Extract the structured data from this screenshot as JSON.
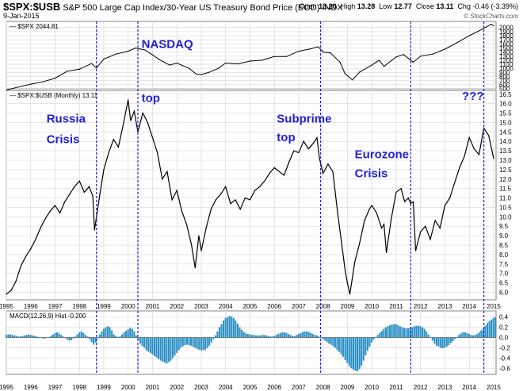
{
  "header": {
    "symbol": "$SPX:$USB",
    "description": "S&P 500 Large Cap Index/30-Year US Treasury Bond Price (EOD)",
    "exchange": "INDX",
    "date": "9-Jan-2015",
    "open_label": "Open",
    "open": "13.20",
    "high_label": "High",
    "high": "13.28",
    "low_label": "Low",
    "low": "12.77",
    "close_label": "Close",
    "close": "13.11",
    "chg_label": "Chg",
    "chg": "-0.46 (-3.39%)",
    "brand": "© StockCharts.com"
  },
  "colors": {
    "accent": "#1f1fd8",
    "macd_bar": "#2a8ec4",
    "line": "#000000",
    "grid": "#d8d8d8"
  },
  "chart_data": [
    {
      "type": "line",
      "panel": "top",
      "legend": "$SPX 2044.81",
      "y_ticks": [
        "2000",
        "1900",
        "1800",
        "1700",
        "1600",
        "1500",
        "1400",
        "1300",
        "1200",
        "1100",
        "1000",
        "900",
        "800",
        "700",
        "600",
        "500"
      ],
      "ylim": [
        500,
        2150
      ],
      "x": [
        1995.0,
        1995.5,
        1996.0,
        1996.5,
        1997.0,
        1997.5,
        1998.0,
        1998.5,
        1998.7,
        1999.0,
        1999.5,
        2000.0,
        2000.3,
        2000.7,
        2001.0,
        2001.3,
        2001.7,
        2002.0,
        2002.5,
        2002.8,
        2003.0,
        2003.3,
        2003.7,
        2004.0,
        2004.5,
        2005.0,
        2005.5,
        2006.0,
        2006.5,
        2007.0,
        2007.5,
        2007.8,
        2008.0,
        2008.3,
        2008.7,
        2008.9,
        2009.2,
        2009.5,
        2010.0,
        2010.3,
        2010.5,
        2011.0,
        2011.3,
        2011.7,
        2012.0,
        2012.5,
        2013.0,
        2013.5,
        2014.0,
        2014.5,
        2014.9,
        2015.0
      ],
      "values": [
        470,
        545,
        615,
        670,
        760,
        930,
        980,
        1120,
        1010,
        1230,
        1350,
        1420,
        1500,
        1450,
        1330,
        1210,
        1080,
        1130,
        1000,
        860,
        850,
        900,
        1000,
        1130,
        1110,
        1180,
        1200,
        1290,
        1290,
        1420,
        1480,
        1530,
        1400,
        1380,
        1150,
        870,
        720,
        910,
        1080,
        1200,
        1050,
        1280,
        1340,
        1150,
        1300,
        1350,
        1470,
        1630,
        1800,
        1950,
        2080,
        2044
      ]
    },
    {
      "type": "line",
      "panel": "middle",
      "legend": "$SPX:$USB (Monthly) 13.11",
      "y_ticks": [
        "16.5",
        "16.0",
        "15.5",
        "15.0",
        "14.5",
        "14.0",
        "13.5",
        "13.0",
        "12.5",
        "12.0",
        "11.5",
        "11.0",
        "10.5",
        "10.0",
        "9.5",
        "9.0",
        "8.5",
        "8.0",
        "7.5",
        "7.0",
        "6.5",
        "6.0"
      ],
      "ylim": [
        5.6,
        16.7
      ],
      "x": [
        1995.0,
        1995.2,
        1995.4,
        1995.6,
        1995.8,
        1996.0,
        1996.2,
        1996.4,
        1996.6,
        1996.8,
        1997.0,
        1997.2,
        1997.4,
        1997.6,
        1997.8,
        1998.0,
        1998.2,
        1998.4,
        1998.55,
        1998.62,
        1998.7,
        1998.85,
        1999.0,
        1999.2,
        1999.4,
        1999.6,
        1999.8,
        2000.0,
        2000.1,
        2000.25,
        2000.4,
        2000.6,
        2000.8,
        2001.0,
        2001.2,
        2001.4,
        2001.6,
        2001.8,
        2002.0,
        2002.2,
        2002.4,
        2002.6,
        2002.75,
        2002.9,
        2003.0,
        2003.2,
        2003.4,
        2003.6,
        2003.8,
        2004.0,
        2004.2,
        2004.4,
        2004.6,
        2004.8,
        2005.0,
        2005.2,
        2005.4,
        2005.6,
        2005.8,
        2006.0,
        2006.2,
        2006.4,
        2006.6,
        2006.8,
        2007.0,
        2007.2,
        2007.4,
        2007.6,
        2007.75,
        2007.85,
        2008.0,
        2008.2,
        2008.4,
        2008.6,
        2008.75,
        2008.9,
        2009.0,
        2009.1,
        2009.3,
        2009.5,
        2009.7,
        2009.9,
        2010.0,
        2010.2,
        2010.4,
        2010.5,
        2010.6,
        2010.8,
        2011.0,
        2011.2,
        2011.35,
        2011.5,
        2011.6,
        2011.7,
        2011.8,
        2012.0,
        2012.2,
        2012.4,
        2012.6,
        2012.8,
        2013.0,
        2013.2,
        2013.4,
        2013.6,
        2013.8,
        2014.0,
        2014.2,
        2014.4,
        2014.6,
        2014.8,
        2015.0
      ],
      "values": [
        5.9,
        6.1,
        6.6,
        7.4,
        7.9,
        8.3,
        8.8,
        9.4,
        9.9,
        10.3,
        10.6,
        10.2,
        10.8,
        11.2,
        11.6,
        11.9,
        11.3,
        11.6,
        11.1,
        9.3,
        10.0,
        11.3,
        12.5,
        13.4,
        14.1,
        13.7,
        14.9,
        16.2,
        15.1,
        15.6,
        14.5,
        15.5,
        15.0,
        14.2,
        13.4,
        12.0,
        12.4,
        10.9,
        11.4,
        10.3,
        9.6,
        8.5,
        7.3,
        9.0,
        8.2,
        9.4,
        10.4,
        10.9,
        11.2,
        11.6,
        10.7,
        10.9,
        10.4,
        11.0,
        10.9,
        11.4,
        11.6,
        11.9,
        12.3,
        12.6,
        12.4,
        12.2,
        12.9,
        13.5,
        13.4,
        14.0,
        13.6,
        13.9,
        14.2,
        13.1,
        12.3,
        12.8,
        12.4,
        10.2,
        8.7,
        7.2,
        6.5,
        5.9,
        7.6,
        8.6,
        9.8,
        10.4,
        10.6,
        10.2,
        9.4,
        9.6,
        8.1,
        9.9,
        11.3,
        11.5,
        10.8,
        11.0,
        10.7,
        10.8,
        8.2,
        9.2,
        9.5,
        8.8,
        9.8,
        9.4,
        10.6,
        11.0,
        11.8,
        12.6,
        13.2,
        14.2,
        13.6,
        13.3,
        14.7,
        14.3,
        13.1
      ]
    },
    {
      "type": "bar",
      "panel": "bottom",
      "legend": "MACD(12,26,9) Hist -0.200",
      "y_ticks": [
        "0.4",
        "0.2",
        "0.0",
        "-0.2",
        "-0.4",
        "-0.6"
      ],
      "ylim": [
        -0.72,
        0.52
      ],
      "x_start": 1995.0,
      "x_step": 0.0833,
      "values": [
        0.05,
        0.06,
        0.06,
        0.05,
        0.04,
        0.03,
        0.02,
        0.02,
        0.03,
        0.04,
        0.05,
        0.06,
        0.05,
        0.04,
        0.03,
        0.02,
        0.01,
        0.0,
        -0.02,
        -0.02,
        -0.01,
        0.01,
        0.03,
        0.06,
        0.09,
        0.1,
        0.08,
        0.05,
        0.02,
        -0.01,
        -0.04,
        -0.06,
        -0.05,
        -0.02,
        0.02,
        0.06,
        0.1,
        0.12,
        0.09,
        0.05,
        0.02,
        -0.03,
        -0.09,
        -0.14,
        -0.1,
        -0.02,
        0.06,
        0.12,
        0.17,
        0.2,
        0.22,
        0.2,
        0.14,
        0.06,
        0.03,
        0.01,
        0.02,
        0.06,
        0.1,
        0.13,
        0.16,
        0.19,
        0.17,
        0.12,
        0.04,
        -0.04,
        -0.12,
        -0.17,
        -0.2,
        -0.25,
        -0.28,
        -0.3,
        -0.33,
        -0.36,
        -0.39,
        -0.42,
        -0.45,
        -0.47,
        -0.49,
        -0.51,
        -0.48,
        -0.45,
        -0.4,
        -0.35,
        -0.3,
        -0.25,
        -0.2,
        -0.17,
        -0.15,
        -0.14,
        -0.15,
        -0.16,
        -0.18,
        -0.2,
        -0.22,
        -0.24,
        -0.25,
        -0.25,
        -0.24,
        -0.21,
        -0.16,
        -0.1,
        -0.03,
        0.04,
        0.12,
        0.2,
        0.26,
        0.33,
        0.38,
        0.4,
        0.42,
        0.41,
        0.38,
        0.33,
        0.27,
        0.2,
        0.15,
        0.11,
        0.08,
        0.07,
        0.06,
        0.05,
        0.05,
        0.04,
        0.04,
        0.04,
        0.05,
        0.05,
        0.04,
        0.03,
        0.02,
        0.02,
        0.03,
        0.05,
        0.07,
        0.09,
        0.1,
        0.1,
        0.09,
        0.07,
        0.05,
        0.03,
        0.03,
        0.05,
        0.07,
        0.09,
        0.11,
        0.12,
        0.12,
        0.11,
        0.09,
        0.07,
        0.05,
        0.04,
        0.02,
        0.0,
        -0.03,
        -0.06,
        -0.09,
        -0.12,
        -0.14,
        -0.17,
        -0.2,
        -0.24,
        -0.28,
        -0.33,
        -0.38,
        -0.44,
        -0.5,
        -0.56,
        -0.6,
        -0.63,
        -0.65,
        -0.66,
        -0.62,
        -0.55,
        -0.45,
        -0.35,
        -0.26,
        -0.18,
        -0.1,
        -0.04,
        0.01,
        0.05,
        0.09,
        0.13,
        0.17,
        0.2,
        0.22,
        0.24,
        0.25,
        0.26,
        0.26,
        0.24,
        0.22,
        0.2,
        0.19,
        0.18,
        0.18,
        0.19,
        0.2,
        0.22,
        0.23,
        0.23,
        0.22,
        0.2,
        0.17,
        0.12,
        0.06,
        0.0,
        -0.06,
        -0.12,
        -0.16,
        -0.18,
        -0.2,
        -0.21,
        -0.2,
        -0.18,
        -0.15,
        -0.11,
        -0.07,
        -0.03,
        0.01,
        0.05,
        0.08,
        0.1,
        0.1,
        0.09,
        0.07,
        0.05,
        0.04,
        0.05,
        0.07,
        0.1,
        0.14,
        0.18,
        0.23,
        0.28,
        0.32,
        0.35,
        0.38,
        0.4,
        0.38,
        0.34,
        0.3,
        0.26,
        0.22,
        0.18,
        0.12,
        0.06,
        0.0,
        -0.06,
        -0.12,
        -0.16,
        -0.2
      ]
    }
  ],
  "x_axis": {
    "labels": [
      "1995",
      "1996",
      "1997",
      "1998",
      "1999",
      "2000",
      "2001",
      "2002",
      "2003",
      "2004",
      "2005",
      "2006",
      "2007",
      "2008",
      "2009",
      "2010",
      "2011",
      "2012",
      "2013",
      "2014",
      "2015"
    ],
    "years": [
      1995,
      1996,
      1997,
      1998,
      1999,
      2000,
      2001,
      2002,
      2003,
      2004,
      2005,
      2006,
      2007,
      2008,
      2009,
      2010,
      2011,
      2012,
      2013,
      2014,
      2015
    ]
  },
  "events": [
    1998.7,
    2000.4,
    2007.9,
    2011.6,
    2014.6
  ],
  "annotations": [
    {
      "text": "Russia",
      "x": 1996.65,
      "y": 15.0
    },
    {
      "text": "Crisis",
      "x": 1996.65,
      "y": 13.9
    },
    {
      "text": "NASDAQ",
      "x": 2000.55,
      "y": 1850
    },
    {
      "text": "top",
      "x": 2000.55,
      "y": 16.1
    },
    {
      "text": "Subprime",
      "x": 2006.1,
      "y": 15.0
    },
    {
      "text": "top",
      "x": 2006.1,
      "y": 14.0
    },
    {
      "text": "Eurozone",
      "x": 2009.3,
      "y": 13.1
    },
    {
      "text": "Crisis",
      "x": 2009.3,
      "y": 12.1
    },
    {
      "text": "???",
      "x": 2013.7,
      "y": 16.2
    }
  ]
}
